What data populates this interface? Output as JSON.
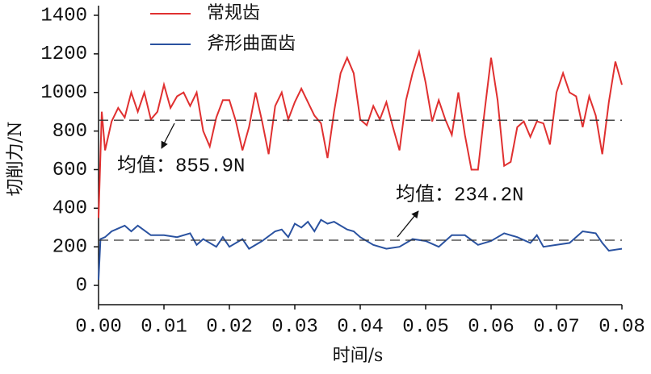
{
  "chart_data": {
    "type": "line",
    "xlabel": "时间/s",
    "ylabel": "切削力/N",
    "xlim": [
      0,
      0.08
    ],
    "ylim": [
      -100,
      1450
    ],
    "xticks": [
      {
        "value": 0,
        "label": "0.00"
      },
      0.01,
      0.02,
      0.03,
      0.04,
      0.05,
      0.06,
      0.07,
      0.08
    ],
    "yticks": [
      0,
      200,
      400,
      600,
      800,
      1000,
      1200,
      1400
    ],
    "legend": "upper left",
    "series": [
      {
        "name": "常规齿",
        "color": "#e03030",
        "x": [
          0,
          0.0005,
          0.001,
          0.002,
          0.003,
          0.004,
          0.005,
          0.006,
          0.007,
          0.008,
          0.009,
          0.01,
          0.011,
          0.012,
          0.013,
          0.014,
          0.015,
          0.016,
          0.017,
          0.018,
          0.019,
          0.02,
          0.021,
          0.022,
          0.023,
          0.024,
          0.025,
          0.026,
          0.027,
          0.028,
          0.029,
          0.03,
          0.031,
          0.032,
          0.033,
          0.034,
          0.035,
          0.036,
          0.037,
          0.038,
          0.039,
          0.04,
          0.041,
          0.042,
          0.043,
          0.044,
          0.045,
          0.046,
          0.047,
          0.048,
          0.049,
          0.05,
          0.051,
          0.052,
          0.053,
          0.054,
          0.055,
          0.056,
          0.057,
          0.058,
          0.059,
          0.06,
          0.061,
          0.062,
          0.063,
          0.064,
          0.065,
          0.066,
          0.067,
          0.068,
          0.069,
          0.07,
          0.071,
          0.072,
          0.073,
          0.074,
          0.075,
          0.076,
          0.077,
          0.078,
          0.079,
          0.08
        ],
        "values": [
          350,
          900,
          700,
          850,
          920,
          870,
          1000,
          900,
          1000,
          860,
          900,
          1040,
          920,
          980,
          1000,
          930,
          1000,
          800,
          720,
          870,
          960,
          960,
          850,
          700,
          820,
          1000,
          850,
          680,
          930,
          1000,
          860,
          950,
          1020,
          950,
          880,
          840,
          660,
          900,
          1100,
          1180,
          1100,
          860,
          830,
          930,
          860,
          950,
          820,
          700,
          960,
          1100,
          1210,
          1050,
          850,
          960,
          860,
          780,
          1000,
          780,
          600,
          600,
          900,
          1180,
          960,
          620,
          640,
          820,
          850,
          770,
          850,
          840,
          730,
          1000,
          1100,
          1000,
          980,
          820,
          980,
          880,
          680,
          950,
          1160,
          1040
        ]
      },
      {
        "name": "斧形曲面齿",
        "color": "#2a52a0",
        "x": [
          0,
          0.0003,
          0.001,
          0.002,
          0.004,
          0.005,
          0.006,
          0.008,
          0.01,
          0.012,
          0.014,
          0.015,
          0.016,
          0.018,
          0.019,
          0.02,
          0.022,
          0.023,
          0.025,
          0.027,
          0.028,
          0.029,
          0.03,
          0.031,
          0.032,
          0.033,
          0.034,
          0.035,
          0.036,
          0.038,
          0.039,
          0.04,
          0.042,
          0.044,
          0.046,
          0.048,
          0.05,
          0.052,
          0.053,
          0.054,
          0.056,
          0.058,
          0.06,
          0.062,
          0.064,
          0.066,
          0.067,
          0.068,
          0.07,
          0.072,
          0.074,
          0.076,
          0.077,
          0.078,
          0.08
        ],
        "values": [
          30,
          240,
          250,
          280,
          310,
          280,
          310,
          260,
          260,
          250,
          270,
          210,
          240,
          200,
          250,
          200,
          240,
          190,
          230,
          280,
          290,
          250,
          320,
          300,
          330,
          280,
          340,
          320,
          330,
          290,
          280,
          250,
          210,
          190,
          200,
          240,
          230,
          200,
          230,
          260,
          260,
          210,
          230,
          270,
          250,
          220,
          260,
          200,
          210,
          220,
          280,
          270,
          220,
          180,
          190
        ]
      }
    ],
    "mean_lines": [
      {
        "value": 855.9,
        "label": "均值：855.9N"
      },
      {
        "value": 234.2,
        "label": "均值：234.2N"
      }
    ]
  }
}
